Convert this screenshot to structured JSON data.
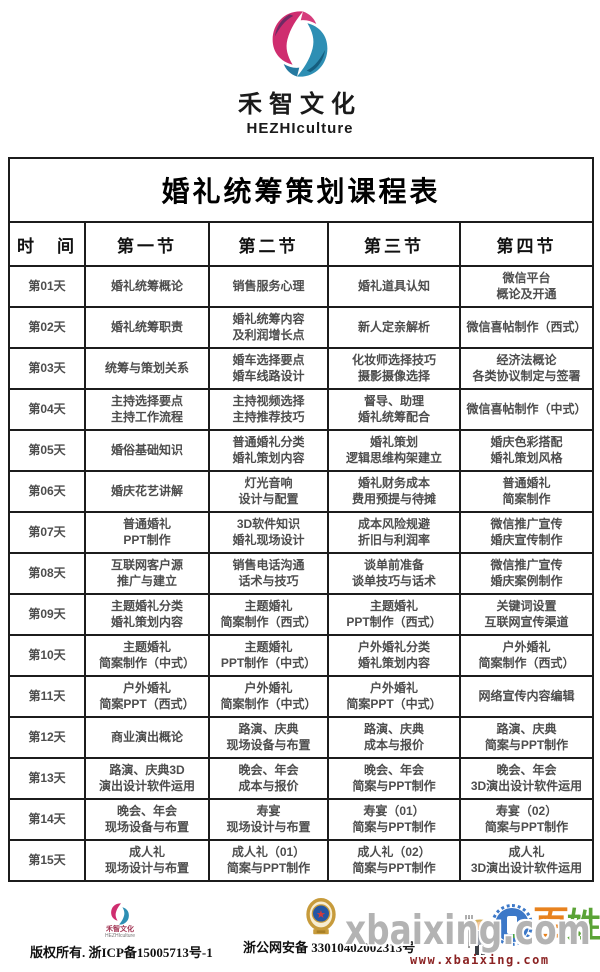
{
  "brand": {
    "name_cn": "禾智文化",
    "name_en": "HEZHIculture"
  },
  "colors": {
    "logo_pink": "#cf2d6f",
    "logo_purple": "#6f2a64",
    "logo_teal": "#2e8fb4",
    "logo_teal_dark": "#155e7f",
    "badge_gold": "#c79b3b",
    "badge_blue": "#2456a4",
    "badge_red": "#d43a3a",
    "mascot_blue": "#3c78c8",
    "mascot_orange": "#e8821e",
    "mascot_green": "#5aa336",
    "watermark_gray": "#b3b3b3",
    "border": "#1c1c1c",
    "cell_text": "#4d4d4d"
  },
  "table": {
    "title": "婚礼统筹策划课程表",
    "headers": [
      "时　间",
      "第一节",
      "第二节",
      "第三节",
      "第四节"
    ],
    "rows": [
      {
        "day": "第01天",
        "cells": [
          "婚礼统筹概论",
          "销售服务心理",
          "婚礼道具认知",
          "微信平台\n概论及开通"
        ]
      },
      {
        "day": "第02天",
        "cells": [
          "婚礼统筹职责",
          "婚礼统筹内容\n及利润增长点",
          "新人定亲解析",
          "微信喜帖制作（西式）"
        ]
      },
      {
        "day": "第03天",
        "cells": [
          "统筹与策划关系",
          "婚车选择要点\n婚车线路设计",
          "化妆师选择技巧\n摄影摄像选择",
          "经济法概论\n各类协议制定与签署"
        ]
      },
      {
        "day": "第04天",
        "cells": [
          "主持选择要点\n主持工作流程",
          "主持视频选择\n主持推荐技巧",
          "督导、助理\n婚礼统筹配合",
          "微信喜帖制作（中式）"
        ]
      },
      {
        "day": "第05天",
        "cells": [
          "婚俗基础知识",
          "普通婚礼分类\n婚礼策划内容",
          "婚礼策划\n逻辑思维构架建立",
          "婚庆色彩搭配\n婚礼策划风格"
        ]
      },
      {
        "day": "第06天",
        "cells": [
          "婚庆花艺讲解",
          "灯光音响\n设计与配置",
          "婚礼财务成本\n费用预提与待摊",
          "普通婚礼\n简案制作"
        ]
      },
      {
        "day": "第07天",
        "cells": [
          "普通婚礼\nPPT制作",
          "3D软件知识\n婚礼现场设计",
          "成本风险规避\n折旧与利润率",
          "微信推广宣传\n婚庆宣传制作"
        ]
      },
      {
        "day": "第08天",
        "cells": [
          "互联网客户源\n推广与建立",
          "销售电话沟通\n话术与技巧",
          "谈单前准备\n谈单技巧与话术",
          "微信推广宣传\n婚庆案例制作"
        ]
      },
      {
        "day": "第09天",
        "cells": [
          "主题婚礼分类\n婚礼策划内容",
          "主题婚礼\n简案制作（西式）",
          "主题婚礼\nPPT制作（西式）",
          "关键词设置\n互联网宣传渠道"
        ]
      },
      {
        "day": "第10天",
        "cells": [
          "主题婚礼\n简案制作（中式）",
          "主题婚礼\nPPT制作（中式）",
          "户外婚礼分类\n婚礼策划内容",
          "户外婚礼\n简案制作（西式）"
        ]
      },
      {
        "day": "第11天",
        "cells": [
          "户外婚礼\n简案PPT（西式）",
          "户外婚礼\n简案制作（中式）",
          "户外婚礼\n简案PPT（中式）",
          "网络宣传内容编辑"
        ]
      },
      {
        "day": "第12天",
        "cells": [
          "商业演出概论",
          "路演、庆典\n现场设备与布置",
          "路演、庆典\n成本与报价",
          "路演、庆典\n简案与PPT制作"
        ]
      },
      {
        "day": "第13天",
        "cells": [
          "路演、庆典3D\n演出设计软件运用",
          "晚会、年会\n成本与报价",
          "晚会、年会\n简案与PPT制作",
          "晚会、年会\n3D演出设计软件运用"
        ]
      },
      {
        "day": "第14天",
        "cells": [
          "晚会、年会\n现场设备与布置",
          "寿宴\n现场设计与布置",
          "寿宴（01）\n简案与PPT制作",
          "寿宴（02）\n简案与PPT制作"
        ]
      },
      {
        "day": "第15天",
        "cells": [
          "成人礼\n现场设计与布置",
          "成人礼（01）\n简案与PPT制作",
          "成人礼（02）\n简案与PPT制作",
          "成人礼\n3D演出设计软件运用"
        ]
      }
    ]
  },
  "footer": {
    "brand_cn": "禾智文化",
    "brand_en": "HEZHIculture",
    "copyright": "版权所有. 浙ICP备15005713号-1",
    "police_record": "浙公网安备 33010402002313号",
    "mascot_char_1": "百",
    "mascot_char_2": "姓"
  },
  "watermark": {
    "text": "xbaixing.com",
    "url": "www.xbaixing.com"
  }
}
